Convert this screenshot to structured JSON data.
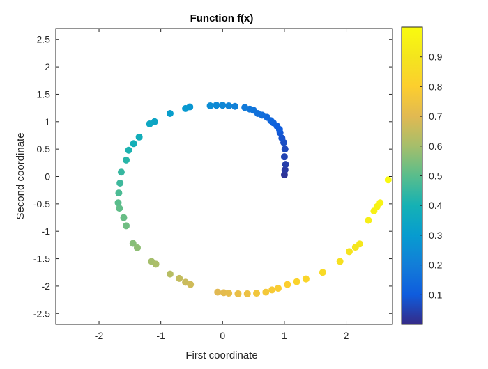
{
  "chart_data": {
    "type": "scatter",
    "title": "Function f(x)",
    "xlabel": "First coordinate",
    "ylabel": "Second coordinate",
    "xlim": [
      -2.7,
      2.75
    ],
    "ylim": [
      -2.7,
      2.7
    ],
    "x_ticks": [
      -2,
      -1,
      0,
      1,
      2
    ],
    "y_ticks": [
      -2.5,
      -2,
      -1.5,
      -1,
      -0.5,
      0,
      0.5,
      1,
      1.5,
      2,
      2.5
    ],
    "colorbar": {
      "min": 0.0,
      "max": 1.0,
      "ticks": [
        0.1,
        0.2,
        0.3,
        0.4,
        0.5,
        0.6,
        0.7,
        0.8,
        0.9
      ],
      "colormap": "parula"
    },
    "grid": false,
    "points": {
      "x": [
        1.0,
        1.01,
        1.02,
        1.0,
        1.01,
        0.99,
        0.96,
        0.93,
        0.92,
        0.88,
        0.82,
        0.78,
        0.72,
        0.64,
        0.57,
        0.5,
        0.44,
        0.36,
        0.2,
        0.1,
        0.0,
        -0.1,
        -0.2,
        -0.53,
        -0.6,
        -0.85,
        -1.1,
        -1.18,
        -1.35,
        -1.44,
        -1.52,
        -1.56,
        -1.64,
        -1.66,
        -1.68,
        -1.69,
        -1.67,
        -1.6,
        -1.56,
        -1.45,
        -1.38,
        -1.15,
        -1.08,
        -0.85,
        -0.7,
        -0.6,
        -0.52,
        -0.08,
        0.02,
        0.1,
        0.25,
        0.4,
        0.55,
        0.7,
        0.8,
        0.9,
        1.05,
        1.2,
        1.35,
        1.62,
        1.9,
        2.05,
        2.15,
        2.22,
        2.36,
        2.45,
        2.5,
        2.55,
        2.68
      ],
      "y": [
        0.03,
        0.12,
        0.22,
        0.36,
        0.5,
        0.62,
        0.7,
        0.8,
        0.86,
        0.92,
        0.98,
        1.02,
        1.08,
        1.12,
        1.15,
        1.21,
        1.23,
        1.26,
        1.28,
        1.29,
        1.3,
        1.3,
        1.29,
        1.27,
        1.24,
        1.15,
        1.0,
        0.96,
        0.72,
        0.6,
        0.48,
        0.3,
        0.08,
        -0.12,
        -0.3,
        -0.48,
        -0.58,
        -0.75,
        -0.9,
        -1.22,
        -1.3,
        -1.55,
        -1.6,
        -1.78,
        -1.86,
        -1.93,
        -1.97,
        -2.11,
        -2.12,
        -2.13,
        -2.14,
        -2.14,
        -2.13,
        -2.11,
        -2.07,
        -2.04,
        -1.97,
        -1.92,
        -1.87,
        -1.75,
        -1.55,
        -1.37,
        -1.29,
        -1.23,
        -0.8,
        -0.63,
        -0.55,
        -0.48,
        -0.06
      ],
      "f": [
        0.02,
        0.03,
        0.04,
        0.05,
        0.06,
        0.07,
        0.08,
        0.09,
        0.1,
        0.11,
        0.12,
        0.13,
        0.14,
        0.15,
        0.16,
        0.17,
        0.18,
        0.19,
        0.21,
        0.22,
        0.23,
        0.24,
        0.25,
        0.28,
        0.29,
        0.31,
        0.34,
        0.35,
        0.38,
        0.39,
        0.41,
        0.43,
        0.45,
        0.46,
        0.48,
        0.5,
        0.51,
        0.52,
        0.53,
        0.56,
        0.57,
        0.6,
        0.61,
        0.63,
        0.65,
        0.66,
        0.67,
        0.7,
        0.71,
        0.72,
        0.73,
        0.74,
        0.76,
        0.77,
        0.78,
        0.79,
        0.8,
        0.82,
        0.83,
        0.85,
        0.88,
        0.89,
        0.9,
        0.91,
        0.94,
        0.95,
        0.96,
        0.97,
        0.99
      ]
    }
  }
}
